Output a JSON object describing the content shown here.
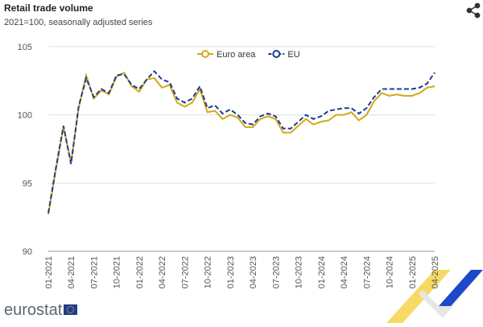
{
  "chart_data": {
    "type": "line",
    "title": "Retail trade volume",
    "subtitle": "2021=100, seasonally adjusted series",
    "logo": "eurostat",
    "categories": [
      "01-2021",
      null,
      null,
      "04-2021",
      null,
      null,
      "07-2021",
      null,
      null,
      "10-2021",
      null,
      null,
      "01-2022",
      null,
      null,
      "04-2022",
      null,
      null,
      "07-2022",
      null,
      null,
      "10-2022",
      null,
      null,
      "01-2023",
      null,
      null,
      "04-2023",
      null,
      null,
      "07-2023",
      null,
      null,
      "10-2023",
      null,
      null,
      "01-2024",
      null,
      null,
      "04-2024",
      null,
      null,
      "07-2024",
      null,
      null,
      "10-2024",
      null,
      null,
      "01-2025",
      null,
      null,
      "04-2025"
    ],
    "series": [
      {
        "name": "Euro area",
        "color": "#d2a81c",
        "line_style": "solid",
        "values": [
          92.7,
          96.0,
          99.1,
          96.5,
          100.5,
          102.9,
          101.2,
          101.8,
          101.5,
          102.8,
          103.1,
          102.1,
          101.7,
          102.6,
          102.7,
          102.0,
          102.2,
          100.9,
          100.6,
          100.9,
          101.9,
          100.2,
          100.3,
          99.7,
          100.0,
          99.8,
          99.1,
          99.1,
          99.7,
          99.9,
          99.7,
          98.7,
          98.7,
          99.2,
          99.7,
          99.3,
          99.5,
          99.6,
          100.0,
          100.0,
          100.2,
          99.6,
          100.0,
          101.0,
          101.6,
          101.4,
          101.5,
          101.4,
          101.4,
          101.6,
          102.0,
          102.1
        ]
      },
      {
        "name": "EU",
        "color": "#1e3d8f",
        "line_style": "dashed",
        "values": [
          92.8,
          96.1,
          99.2,
          96.4,
          100.6,
          102.7,
          101.3,
          101.9,
          101.6,
          102.9,
          103.0,
          102.2,
          101.9,
          102.6,
          103.2,
          102.6,
          102.4,
          101.2,
          100.9,
          101.2,
          102.1,
          100.5,
          100.7,
          100.1,
          100.4,
          100.0,
          99.4,
          99.3,
          99.9,
          100.1,
          99.9,
          99.0,
          99.0,
          99.5,
          100.0,
          99.7,
          99.9,
          100.3,
          100.4,
          100.5,
          100.5,
          100.1,
          100.5,
          101.3,
          101.9,
          101.9,
          101.9,
          101.9,
          101.9,
          102.0,
          102.3,
          103.1
        ]
      }
    ],
    "ylim": [
      90,
      105
    ],
    "yticks": [
      90,
      95,
      100,
      105
    ],
    "grid": true,
    "legend": "top"
  }
}
